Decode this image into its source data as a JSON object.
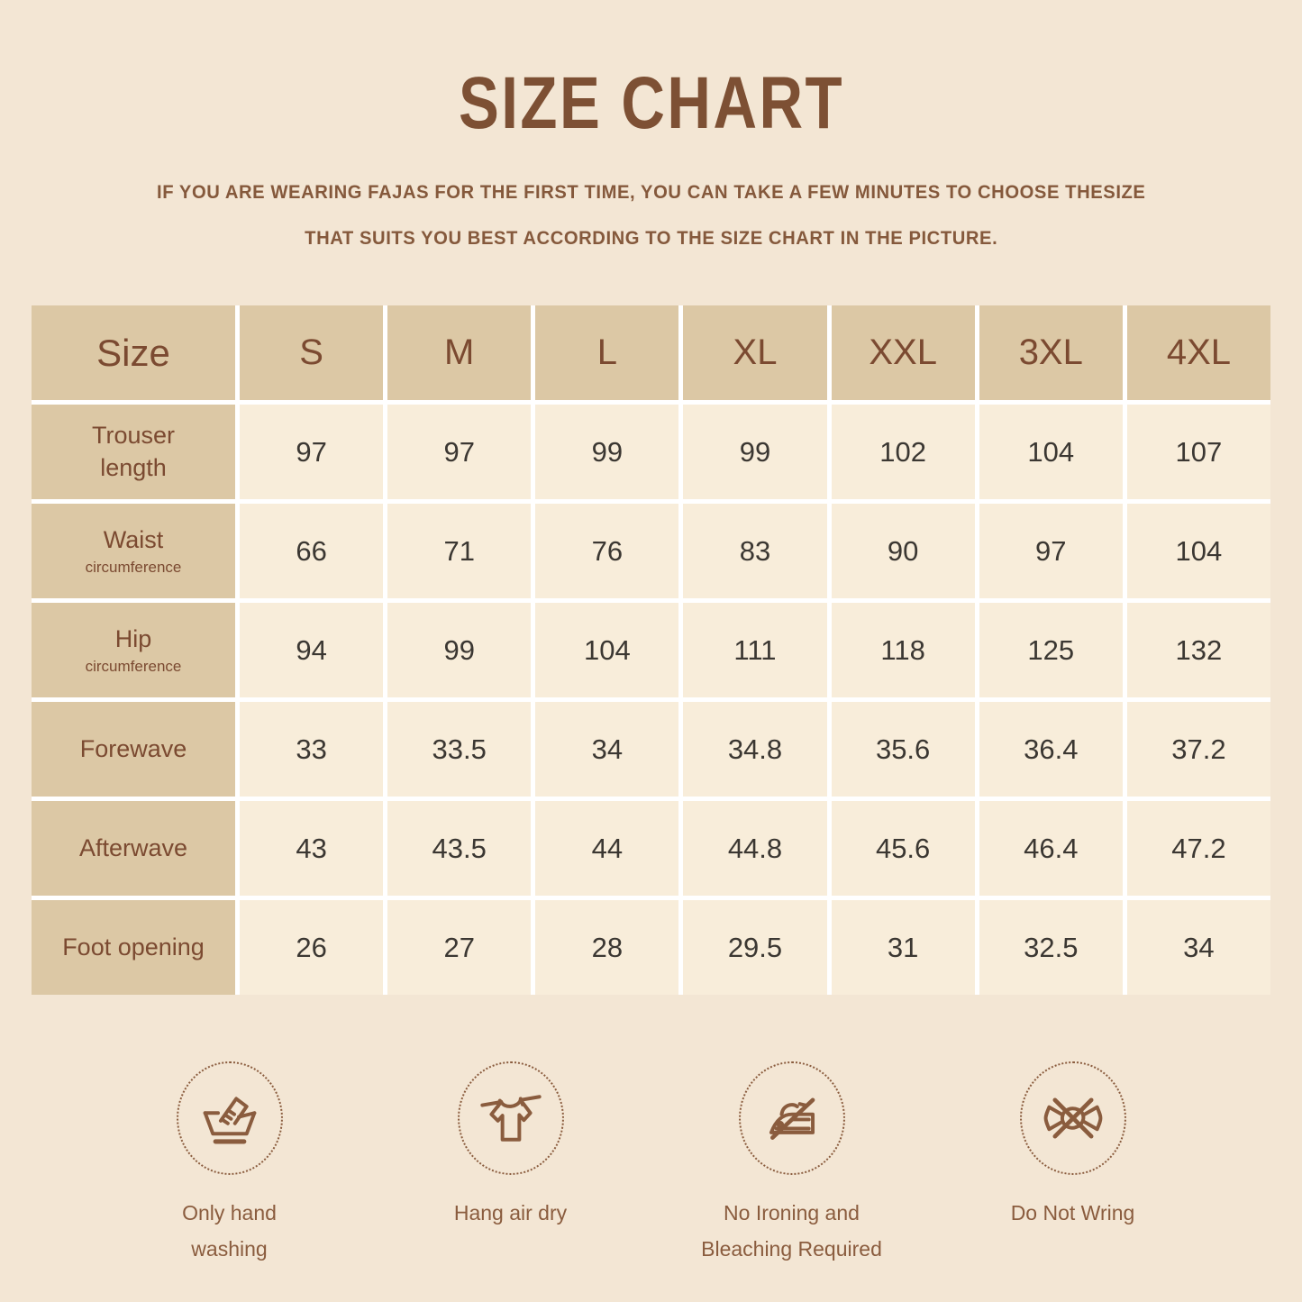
{
  "page": {
    "title": "SIZE CHART",
    "subtitle_line1": "IF YOU ARE WEARING FAJAS FOR THE FIRST TIME, YOU CAN TAKE A FEW MINUTES TO CHOOSE THESIZE",
    "subtitle_line2": "THAT SUITS YOU BEST ACCORDING TO THE SIZE CHART IN THE PICTURE."
  },
  "chart_data": {
    "type": "table",
    "title": "SIZE CHART",
    "columns": [
      "Size",
      "S",
      "M",
      "L",
      "XL",
      "XXL",
      "3XL",
      "4XL"
    ],
    "rows": [
      {
        "label": "Trouser length",
        "values": [
          97,
          97,
          99,
          99,
          102,
          104,
          107
        ]
      },
      {
        "label": "Waist circumference",
        "values": [
          66,
          71,
          76,
          83,
          90,
          97,
          104
        ]
      },
      {
        "label": "Hip circumference",
        "values": [
          94,
          99,
          104,
          111,
          118,
          125,
          132
        ]
      },
      {
        "label": "Forewave",
        "values": [
          33,
          33.5,
          34,
          34.8,
          35.6,
          36.4,
          37.2
        ]
      },
      {
        "label": "Afterwave",
        "values": [
          43,
          43.5,
          44,
          44.8,
          45.6,
          46.4,
          47.2
        ]
      },
      {
        "label": "Foot opening",
        "values": [
          26,
          27,
          28,
          29.5,
          31,
          32.5,
          34
        ]
      }
    ]
  },
  "table": {
    "row_display": [
      {
        "label": "Trouser\nlength",
        "sublabel": ""
      },
      {
        "label": "Waist",
        "sublabel": "circumference"
      },
      {
        "label": "Hip",
        "sublabel": "circumference"
      },
      {
        "label": "Forewave",
        "sublabel": ""
      },
      {
        "label": "Afterwave",
        "sublabel": ""
      },
      {
        "label": "Foot opening",
        "sublabel": ""
      }
    ]
  },
  "care": {
    "items": [
      {
        "icon": "hand-wash-icon",
        "label": "Only hand\nwashing"
      },
      {
        "icon": "hang-dry-icon",
        "label": "Hang air dry"
      },
      {
        "icon": "no-iron-icon",
        "label": "No Ironing and\nBleaching Required"
      },
      {
        "icon": "do-not-wring-icon",
        "label": "Do Not Wring"
      }
    ]
  },
  "colors": {
    "page_background": "#f3e6d4",
    "header_cell": "#dcc8a5",
    "data_cell": "#f8edda",
    "grid_line": "#ffffff",
    "title_brown": "#7d5034",
    "label_brown": "#7b4a31",
    "icon_brown": "#8a5c3e",
    "value_text": "#3b3732"
  }
}
